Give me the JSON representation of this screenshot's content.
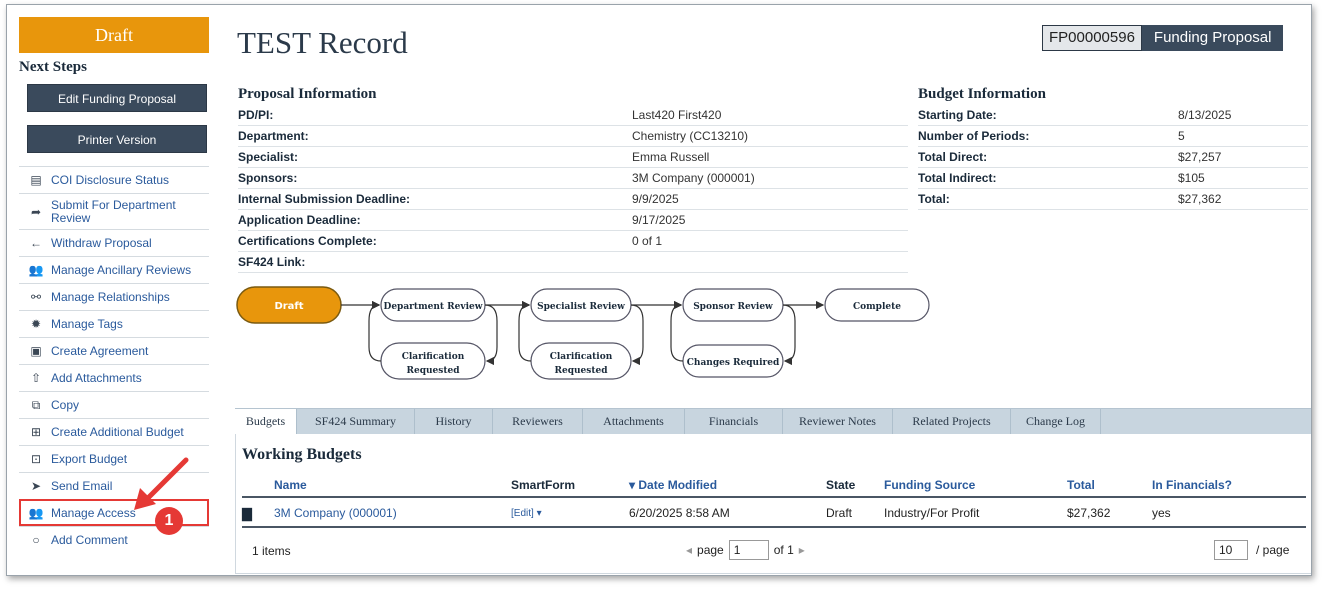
{
  "sidebar": {
    "state": "Draft",
    "next_steps": "Next Steps",
    "buttons": [
      "Edit Funding Proposal",
      "Printer Version"
    ],
    "items": [
      {
        "label": "COI Disclosure Status",
        "icon": "list-icon",
        "glyph": "▤"
      },
      {
        "label": "Submit For Department Review",
        "icon": "share-arrow-icon",
        "glyph": "➦"
      },
      {
        "label": "Withdraw Proposal",
        "icon": "arrow-left-icon",
        "glyph": "←"
      },
      {
        "label": "Manage Ancillary Reviews",
        "icon": "group-icon",
        "glyph": "👥"
      },
      {
        "label": "Manage Relationships",
        "icon": "link-icon",
        "glyph": "⚯"
      },
      {
        "label": "Manage Tags",
        "icon": "gear-icon",
        "glyph": "✹"
      },
      {
        "label": "Create Agreement",
        "icon": "agreement-icon",
        "glyph": "▣"
      },
      {
        "label": "Add Attachments",
        "icon": "upload-icon",
        "glyph": "⇧"
      },
      {
        "label": "Copy",
        "icon": "copy-icon",
        "glyph": "⧉"
      },
      {
        "label": "Create Additional Budget",
        "icon": "add-document-icon",
        "glyph": "⊞"
      },
      {
        "label": "Export Budget",
        "icon": "export-icon",
        "glyph": "⊡"
      },
      {
        "label": "Send Email",
        "icon": "send-icon",
        "glyph": "➤"
      },
      {
        "label": "Manage Access",
        "icon": "users-icon",
        "glyph": "👥"
      },
      {
        "label": "Add Comment",
        "icon": "comment-icon",
        "glyph": "○"
      }
    ]
  },
  "header": {
    "title": "TEST Record",
    "id": "FP00000596",
    "type": "Funding Proposal"
  },
  "proposal": {
    "title": "Proposal Information",
    "rows": [
      {
        "k": "PD/PI:",
        "v": "Last420 First420"
      },
      {
        "k": "Department:",
        "v": "Chemistry (CC13210)"
      },
      {
        "k": "Specialist:",
        "v": "Emma Russell"
      },
      {
        "k": "Sponsors:",
        "v": "3M Company (000001)"
      },
      {
        "k": "Internal Submission Deadline:",
        "v": "9/9/2025"
      },
      {
        "k": "Application Deadline:",
        "v": "9/17/2025"
      },
      {
        "k": "Certifications Complete:",
        "v": "0 of  1"
      },
      {
        "k": "SF424 Link:",
        "v": ""
      }
    ]
  },
  "budget": {
    "title": "Budget Information",
    "rows": [
      {
        "k": "Starting Date:",
        "v": "8/13/2025"
      },
      {
        "k": "Number of Periods:",
        "v": "5"
      },
      {
        "k": "Total Direct:",
        "v": "$27,257"
      },
      {
        "k": "Total Indirect:",
        "v": "$105"
      },
      {
        "k": "Total:",
        "v": "$27,362"
      }
    ]
  },
  "workflow": {
    "draft": "Draft",
    "dept": "Department Review",
    "spec": "Specialist Review",
    "sponsor": "Sponsor Review",
    "complete": "Complete",
    "clar1_a": "Clarification",
    "clar1_b": "Requested",
    "clar2_a": "Clarification",
    "clar2_b": "Requested",
    "changes": "Changes Required",
    "active_color": "#e8960c"
  },
  "tabs": [
    "Budgets",
    "SF424 Summary",
    "History",
    "Reviewers",
    "Attachments",
    "Financials",
    "Reviewer Notes",
    "Related Projects",
    "Change Log"
  ],
  "working_budgets": {
    "title": "Working Budgets",
    "columns": {
      "name": "Name",
      "smartform": "SmartForm",
      "date": "▾ Date Modified",
      "state": "State",
      "source": "Funding Source",
      "total": "Total",
      "financials": "In Financials?"
    },
    "row": {
      "name": "3M Company (000001)",
      "smartform": "[Edit] ▾",
      "date": "6/20/2025 8:58 AM",
      "state": "Draft",
      "source": "Industry/For Profit",
      "total": "$27,362",
      "financials": "yes"
    },
    "footer": {
      "items": "1 items",
      "page_label": "page",
      "page_value": "1",
      "of": "of 1",
      "page_size": "10",
      "per_page": "/ page"
    }
  },
  "callout": {
    "number": "1"
  }
}
